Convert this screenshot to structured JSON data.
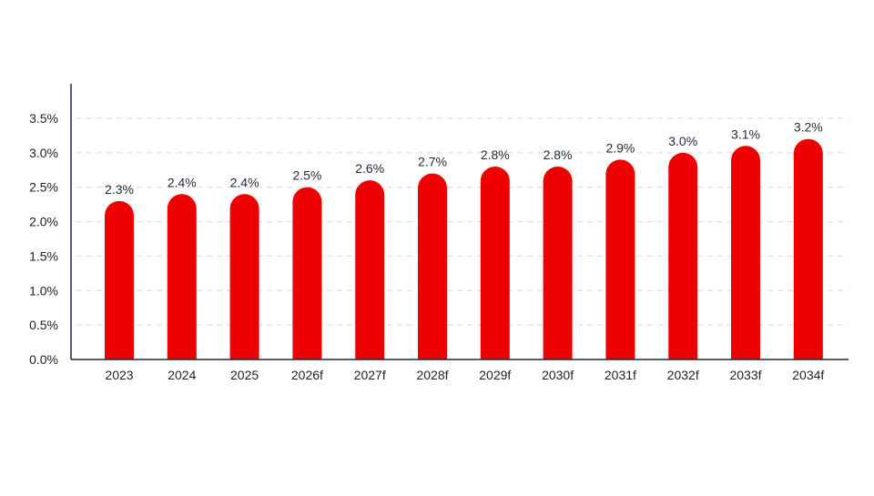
{
  "chart_data": {
    "type": "bar",
    "categories": [
      "2023",
      "2024",
      "2025",
      "2026f",
      "2027f",
      "2028f",
      "2029f",
      "2030f",
      "2031f",
      "2032f",
      "2033f",
      "2034f"
    ],
    "values": [
      2.3,
      2.4,
      2.4,
      2.5,
      2.6,
      2.7,
      2.8,
      2.8,
      2.9,
      3.0,
      3.1,
      3.2
    ],
    "data_labels": [
      "2.3%",
      "2.4%",
      "2.4%",
      "2.5%",
      "2.6%",
      "2.7%",
      "2.8%",
      "2.8%",
      "2.9%",
      "3.0%",
      "3.1%",
      "3.2%"
    ],
    "y_ticks": [
      0,
      0.5,
      1.0,
      1.5,
      2.0,
      2.5,
      3.0,
      3.5
    ],
    "y_tick_labels": [
      "0.0%",
      "0.5%",
      "1.0%",
      "1.5%",
      "2.0%",
      "2.5%",
      "3.0%",
      "3.5%"
    ],
    "ylim": [
      0,
      3.5
    ],
    "title": "",
    "xlabel": "",
    "ylabel": "",
    "grid": "horizontal dashed",
    "legend": "none",
    "bar_shape": "rounded top",
    "colors": {
      "bar": "#ee0000",
      "axis": "#1f2a44",
      "grid": "#d9d9d9",
      "label_text": "#1f2a3a"
    }
  }
}
